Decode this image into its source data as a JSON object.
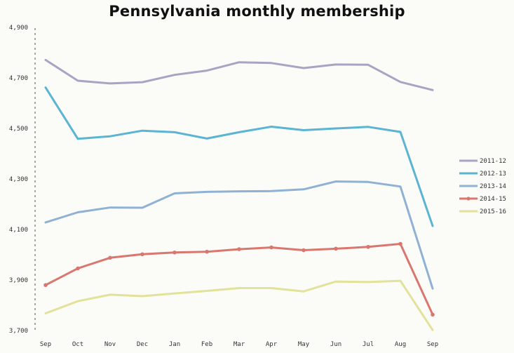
{
  "chart_data": {
    "type": "line",
    "title": "Pennsylvania monthly membership",
    "xlabel": "",
    "ylabel": "",
    "categories": [
      "Sep",
      "Oct",
      "Nov",
      "Dec",
      "Jan",
      "Feb",
      "Mar",
      "Apr",
      "May",
      "Jun",
      "Jul",
      "Aug",
      "Sep"
    ],
    "ylim": [
      3700,
      4900
    ],
    "yticks": [
      3700,
      3900,
      4100,
      4300,
      4500,
      4700,
      4900
    ],
    "ytick_labels": [
      "3,700",
      "3,900",
      "4,100",
      "4,300",
      "4,500",
      "4,700",
      "4,900"
    ],
    "grid": false,
    "legend_position": "right",
    "series": [
      {
        "name": "2011-12",
        "color": "#a9a4c4",
        "marker": false,
        "values": [
          4771,
          4689,
          4678,
          4683,
          4712,
          4729,
          4762,
          4759,
          4739,
          4753,
          4752,
          4684,
          4652
        ]
      },
      {
        "name": "2012-13",
        "color": "#5ab4d2",
        "marker": false,
        "values": [
          4662,
          4459,
          4469,
          4491,
          4485,
          4460,
          4485,
          4507,
          4493,
          4500,
          4506,
          4486,
          4114
        ]
      },
      {
        "name": "2013-14",
        "color": "#8fb1d4",
        "marker": false,
        "values": [
          4128,
          4168,
          4187,
          4186,
          4243,
          4249,
          4251,
          4252,
          4259,
          4290,
          4288,
          4270,
          3866
        ]
      },
      {
        "name": "2014-15",
        "color": "#d9776f",
        "marker": true,
        "values": [
          3880,
          3946,
          3988,
          4002,
          4009,
          4012,
          4022,
          4029,
          4018,
          4024,
          4031,
          4043,
          3763
        ]
      },
      {
        "name": "2015-16",
        "color": "#e2e29a",
        "marker": false,
        "values": [
          3768,
          3816,
          3842,
          3836,
          3847,
          3857,
          3868,
          3868,
          3855,
          3894,
          3892,
          3897,
          3702
        ]
      }
    ]
  }
}
